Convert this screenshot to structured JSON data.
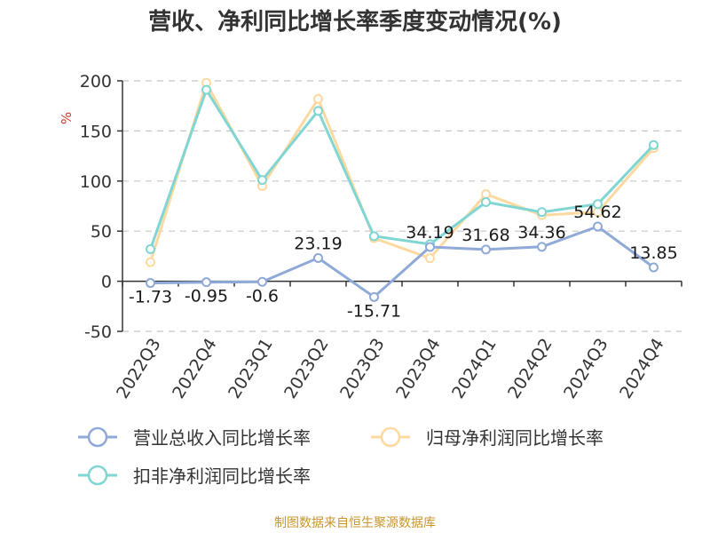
{
  "title": "营收、净利同比增长率季度变动情况(%)",
  "source": "制图数据来自恒生聚源数据库",
  "colors": {
    "revenue": "#8fa9d8",
    "net_profit": "#fdd9a0",
    "deducted_net_profit": "#7fd6d3",
    "grid": "#c8c8c8",
    "axis": "#333333",
    "unit": "#d0392b"
  },
  "chart_data": {
    "type": "line",
    "title": "营收、净利同比增长率季度变动情况(%)",
    "ylabel": "%",
    "ylim": [
      -50,
      200
    ],
    "yticks": [
      -50,
      0,
      50,
      100,
      150,
      200
    ],
    "grid": true,
    "legend_position": "bottom-left",
    "categories": [
      "2022Q3",
      "2022Q4",
      "2023Q1",
      "2023Q2",
      "2023Q3",
      "2023Q4",
      "2024Q1",
      "2024Q2",
      "2024Q3",
      "2024Q4"
    ],
    "series": [
      {
        "name": "营业总收入同比增长率",
        "values": [
          -1.73,
          -0.95,
          -0.6,
          23.19,
          -15.71,
          34.19,
          31.68,
          34.36,
          54.62,
          13.85
        ],
        "labels": [
          "-1.73",
          "-0.95",
          "-0.6",
          "23.19",
          "-15.71",
          "34.19",
          "31.68",
          "34.36",
          "54.62",
          "13.85"
        ]
      },
      {
        "name": "归母净利润同比增长率",
        "values": [
          19,
          198,
          95,
          182,
          43,
          23,
          87,
          66,
          69,
          133
        ]
      },
      {
        "name": "扣非净利润同比增长率",
        "values": [
          32,
          191,
          101,
          170,
          45,
          37,
          79,
          69,
          77,
          136
        ]
      }
    ]
  }
}
